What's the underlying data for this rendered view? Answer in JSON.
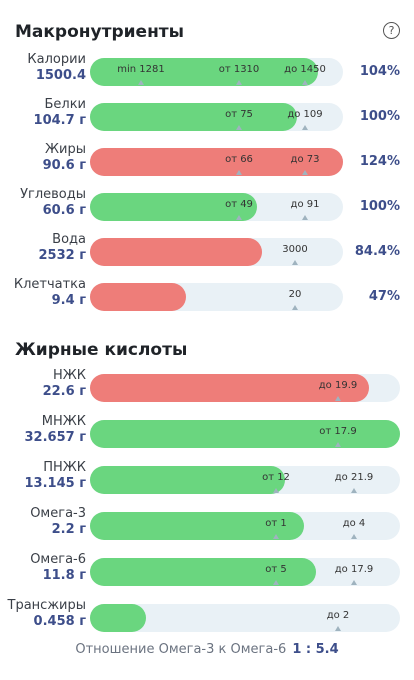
{
  "macros": {
    "title": "Макронутриенты",
    "help_icon": "?",
    "rows": [
      {
        "name": "Калории",
        "value": "1500.4",
        "pct": "104%",
        "color": "green",
        "fill": 0.9,
        "markers": [
          {
            "text": "min 1281",
            "pos": 0.2
          },
          {
            "text": "от 1310",
            "pos": 0.59
          },
          {
            "text": "до 1450",
            "pos": 0.85
          }
        ]
      },
      {
        "name": "Белки",
        "value": "104.7 г",
        "pct": "100%",
        "color": "green",
        "fill": 0.82,
        "markers": [
          {
            "text": "от 75",
            "pos": 0.59
          },
          {
            "text": "до 109",
            "pos": 0.85
          }
        ]
      },
      {
        "name": "Жиры",
        "value": "90.6 г",
        "pct": "124%",
        "color": "red",
        "fill": 1.0,
        "markers": [
          {
            "text": "от 66",
            "pos": 0.59
          },
          {
            "text": "до 73",
            "pos": 0.85
          }
        ]
      },
      {
        "name": "Углеводы",
        "value": "60.6 г",
        "pct": "100%",
        "color": "green",
        "fill": 0.66,
        "markers": [
          {
            "text": "от 49",
            "pos": 0.59
          },
          {
            "text": "до 91",
            "pos": 0.85
          }
        ]
      },
      {
        "name": "Вода",
        "value": "2532 г",
        "pct": "84.4%",
        "color": "red",
        "fill": 0.68,
        "markers": [
          {
            "text": "3000",
            "pos": 0.81
          }
        ]
      },
      {
        "name": "Клетчатка",
        "value": "9.4 г",
        "pct": "47%",
        "color": "red",
        "fill": 0.38,
        "markers": [
          {
            "text": "20",
            "pos": 0.81
          }
        ]
      }
    ]
  },
  "fats": {
    "title": "Жирные кислоты",
    "rows": [
      {
        "name": "НЖК",
        "value": "22.6 г",
        "color": "red",
        "fill": 0.9,
        "markers": [
          {
            "text": "до 19.9",
            "pos": 0.8
          }
        ]
      },
      {
        "name": "МНЖК",
        "value": "32.657 г",
        "color": "green",
        "fill": 1.0,
        "markers": [
          {
            "text": "от 17.9",
            "pos": 0.8
          }
        ]
      },
      {
        "name": "ПНЖК",
        "value": "13.145 г",
        "color": "green",
        "fill": 0.63,
        "markers": [
          {
            "text": "от 12",
            "pos": 0.6
          },
          {
            "text": "до 21.9",
            "pos": 0.85
          }
        ]
      },
      {
        "name": "Омега-3",
        "value": "2.2 г",
        "color": "green",
        "fill": 0.69,
        "markers": [
          {
            "text": "от 1",
            "pos": 0.6
          },
          {
            "text": "до 4",
            "pos": 0.85
          }
        ]
      },
      {
        "name": "Омега-6",
        "value": "11.8 г",
        "color": "green",
        "fill": 0.73,
        "markers": [
          {
            "text": "от 5",
            "pos": 0.6
          },
          {
            "text": "до 17.9",
            "pos": 0.85
          }
        ]
      },
      {
        "name": "Трансжиры",
        "value": "0.458 г",
        "color": "green",
        "fill": 0.18,
        "markers": [
          {
            "text": "до 2",
            "pos": 0.8
          }
        ]
      }
    ]
  },
  "footer": {
    "label": "Отношение Омега-3 к Омега-6",
    "ratio": "1 : 5.4"
  }
}
